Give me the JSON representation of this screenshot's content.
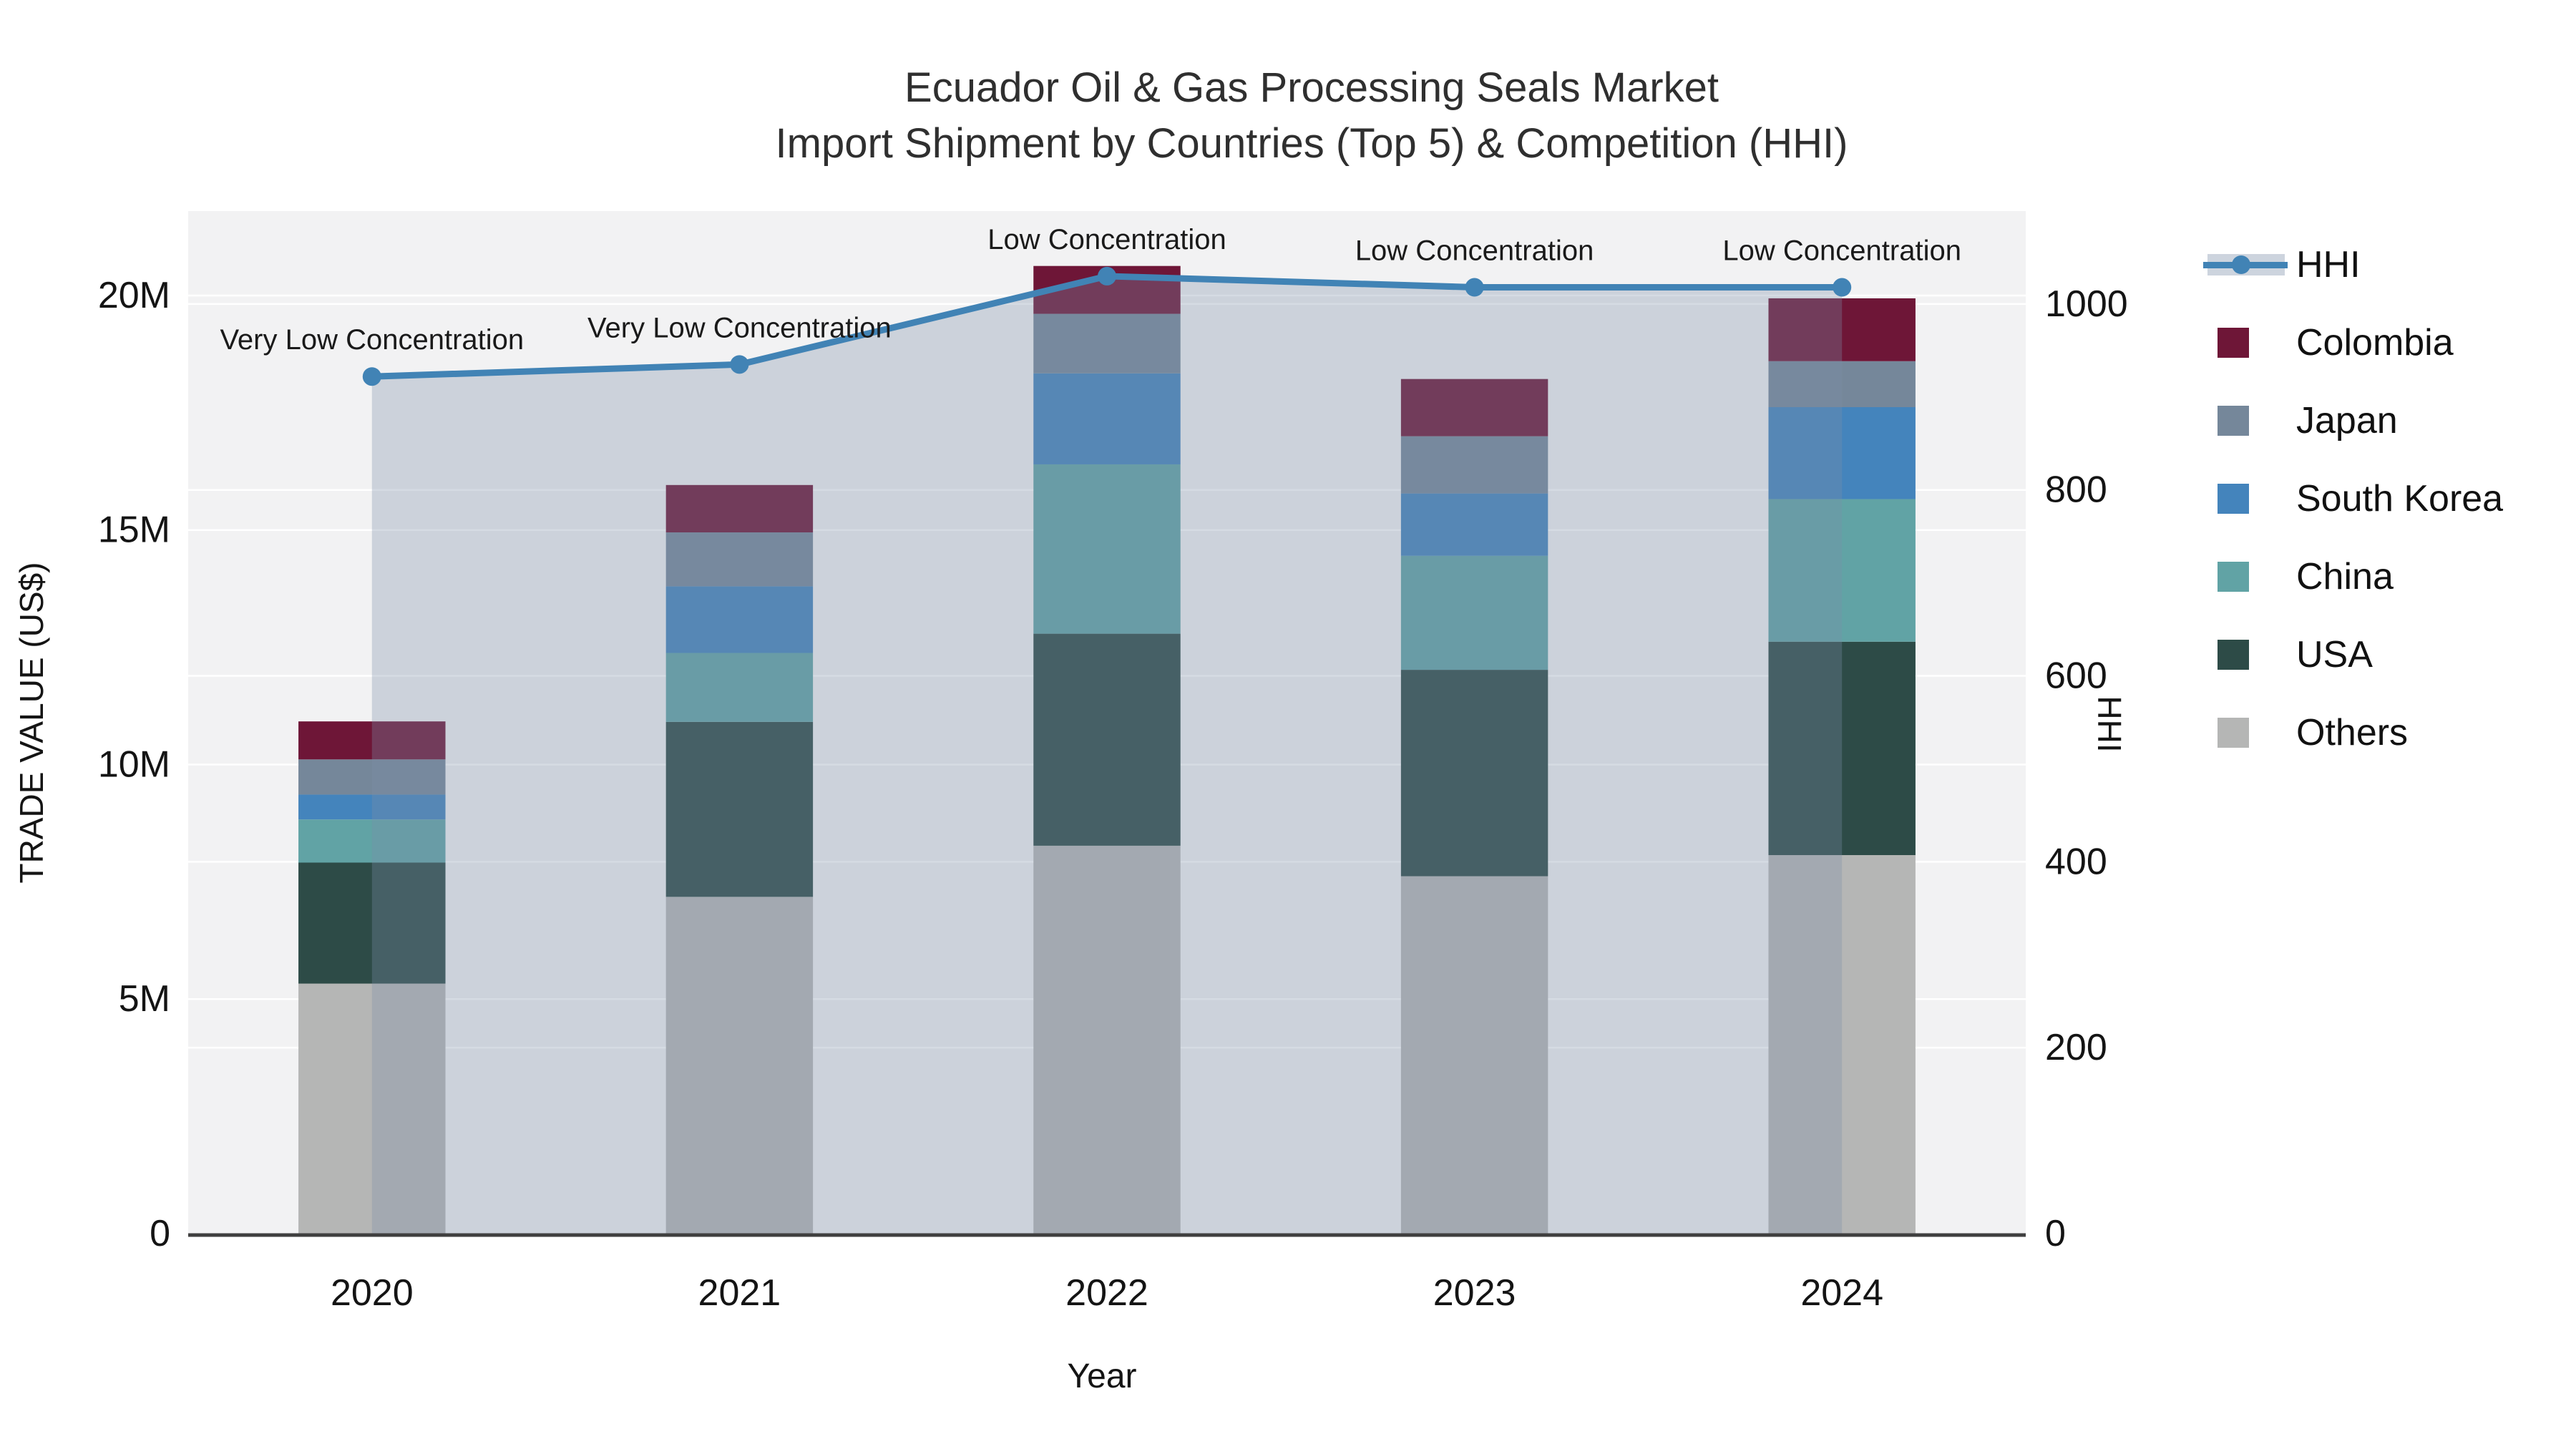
{
  "title": {
    "line1": "Ecuador Oil & Gas Processing Seals Market",
    "line2": "Import Shipment by Countries (Top 5) & Competition (HHI)"
  },
  "axes": {
    "left": {
      "title": "TRADE VALUE (US$)",
      "tick_labels": [
        "0",
        "5M",
        "10M",
        "15M",
        "20M"
      ],
      "tick_values": [
        0,
        5,
        10,
        15,
        20
      ],
      "max_millions": 21.8
    },
    "right": {
      "title": "HHI",
      "tick_labels": [
        "0",
        "200",
        "400",
        "600",
        "800",
        "1000"
      ],
      "tick_values": [
        0,
        200,
        400,
        600,
        800,
        1000
      ],
      "max": 1100
    },
    "x": {
      "title": "Year",
      "categories": [
        "2020",
        "2021",
        "2022",
        "2023",
        "2024"
      ]
    }
  },
  "legend": {
    "items": [
      {
        "label": "HHI",
        "type": "line",
        "color": "#4183B5",
        "band": "#CDD4DE"
      },
      {
        "label": "Colombia",
        "type": "swatch",
        "color": "#6E1637"
      },
      {
        "label": "Japan",
        "type": "swatch",
        "color": "#75879A"
      },
      {
        "label": "South Korea",
        "type": "swatch",
        "color": "#4484BC"
      },
      {
        "label": "China",
        "type": "swatch",
        "color": "#61A3A5"
      },
      {
        "label": "USA",
        "type": "swatch",
        "color": "#2D4B47"
      },
      {
        "label": "Others",
        "type": "swatch",
        "color": "#B5B6B5"
      }
    ]
  },
  "colors": {
    "background": "#FFFFFF",
    "plot_background": "#F2F2F3",
    "gridline": "#FFFFFF",
    "axis_line": "#3F3F3F",
    "text": "#141414",
    "annotation_text": "#1A1A1A",
    "hhi_line": "#4183B5",
    "hhi_area_fill": "rgba(123,142,167,0.32)"
  },
  "chart_data": {
    "type": "bar",
    "subtype": "stacked-bars-with-line-overlay",
    "title": "Ecuador Oil & Gas Processing Seals Market — Import Shipment by Countries (Top 5) & Competition (HHI)",
    "categories": [
      "2020",
      "2021",
      "2022",
      "2023",
      "2024"
    ],
    "value_unit": "Million US$ (trade value, left axis); HHI index (right axis)",
    "bar_series_top_to_bottom": [
      {
        "name": "Colombia",
        "color": "#6E1637",
        "values": [
          0.81,
          1.01,
          1.02,
          1.22,
          1.34
        ]
      },
      {
        "name": "Japan",
        "color": "#75879A",
        "values": [
          0.75,
          1.15,
          1.27,
          1.22,
          0.98
        ]
      },
      {
        "name": "South Korea",
        "color": "#4484BC",
        "values": [
          0.53,
          1.42,
          1.94,
          1.33,
          1.96
        ]
      },
      {
        "name": "China",
        "color": "#61A3A5",
        "values": [
          0.92,
          1.47,
          3.61,
          2.43,
          3.04
        ]
      },
      {
        "name": "USA",
        "color": "#2D4B47",
        "values": [
          2.58,
          3.73,
          4.52,
          4.4,
          4.55
        ]
      },
      {
        "name": "Others",
        "color": "#B5B6B5",
        "values": [
          5.33,
          7.18,
          8.27,
          7.62,
          8.07
        ]
      }
    ],
    "bar_totals_millions": [
      10.92,
      15.96,
      20.63,
      18.22,
      19.94
    ],
    "line_series": {
      "name": "HHI",
      "axis": "right",
      "color": "#4183B5",
      "fill": "rgba(123,142,167,0.32)",
      "values": [
        922,
        935,
        1030,
        1018,
        1018
      ]
    },
    "annotations": [
      "Very Low Concentration",
      "Very Low Concentration",
      "Low Concentration",
      "Low Concentration",
      "Low Concentration"
    ],
    "ylim_left_millions": [
      0,
      21.8
    ],
    "ylim_right": [
      0,
      1100
    ],
    "xlabel": "Year",
    "ylabel_left": "TRADE VALUE (US$)",
    "ylabel_right": "HHI",
    "grid": true,
    "legend_position": "right"
  }
}
